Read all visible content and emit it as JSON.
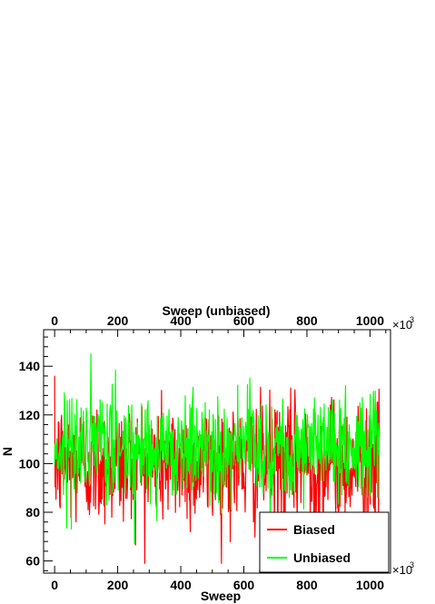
{
  "chart_data": {
    "type": "line",
    "xlabel": "Sweep",
    "x2label": "Sweep (unbiased)",
    "ylabel": "N",
    "x_multiplier": "×10",
    "x_multiplier_exp": "3",
    "xlim": [
      -35,
      1065
    ],
    "ylim": [
      55,
      155
    ],
    "x_ticks": [
      0,
      200,
      400,
      600,
      800,
      1000
    ],
    "y_ticks": [
      60,
      80,
      100,
      120,
      140
    ],
    "legend": {
      "position": "bottom-right"
    },
    "series_colors": {
      "Biased": "#ff0000",
      "Unbiased": "#00ff00"
    },
    "series": [
      {
        "name": "Biased",
        "color": "#ff0000",
        "x_start": 0,
        "x_end": 1030,
        "mean": 100,
        "spread": 13,
        "min": 59,
        "max": 146,
        "points": 700
      },
      {
        "name": "Unbiased",
        "color": "#00ff00",
        "x_start": 0,
        "x_end": 1030,
        "mean": 107,
        "spread": 11,
        "min": 63,
        "max": 150,
        "points": 700
      }
    ]
  }
}
